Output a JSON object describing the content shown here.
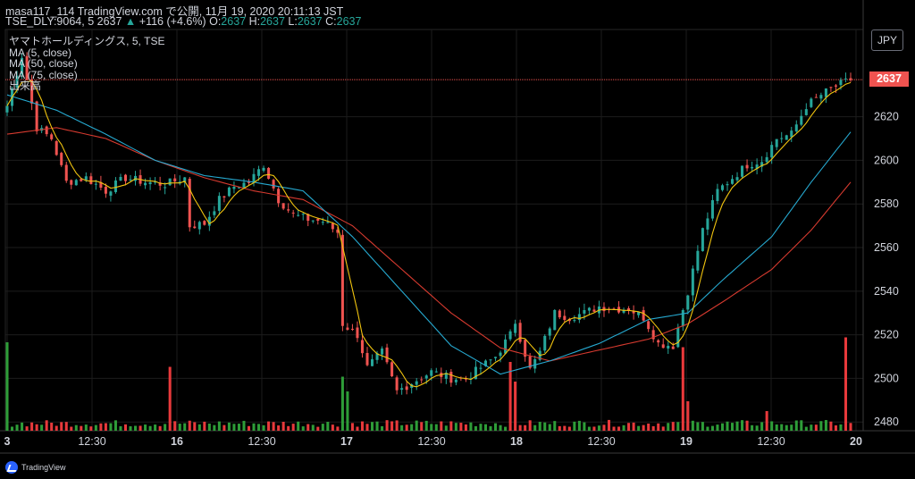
{
  "header": {
    "line1": "masa117_114 TradingView.com で公開, 11月 19, 2020 20:11:13 JST",
    "symbol": "TSE_DLY:9064, 5",
    "last": "2637",
    "change_arrow": "▲",
    "change": "+116 (+4.6%)",
    "o_label": "O:",
    "o_value": "2637",
    "h_label": "H:",
    "h_value": "2637",
    "l_label": "L:",
    "l_value": "2637",
    "c_label": "C:",
    "c_value": "2637"
  },
  "legend": {
    "title": "ヤマトホールディングス, 5, TSE",
    "ma5": "MA (5, close)",
    "ma50": "MA (50, close)",
    "ma75": "MA (75, close)",
    "volume": "出来高"
  },
  "currency": "JPY",
  "price_tag": "2637",
  "brand": "TradingView",
  "colors": {
    "up": "#26a69a",
    "down": "#ef5350",
    "volume_up": "#2e9d38",
    "volume_down": "#e8393b",
    "ma5": "#f1c40f",
    "ma50": "#26a9d0",
    "ma75": "#d63a2f",
    "background": "#000000",
    "grid": "#1c1c1c"
  },
  "chart_data": {
    "type": "candlestick",
    "interval": "5 min",
    "y_ticks": [
      2480,
      2500,
      2520,
      2540,
      2560,
      2580,
      2600,
      2620
    ],
    "ylim": [
      2476,
      2660
    ],
    "x_labels": [
      {
        "text": "3",
        "bold": true
      },
      {
        "text": "12:30",
        "bold": false
      },
      {
        "text": "16",
        "bold": true
      },
      {
        "text": "12:30",
        "bold": false
      },
      {
        "text": "17",
        "bold": true
      },
      {
        "text": "12:30",
        "bold": false
      },
      {
        "text": "18",
        "bold": true
      },
      {
        "text": "12:30",
        "bold": false
      },
      {
        "text": "19",
        "bold": true
      },
      {
        "text": "12:30",
        "bold": false
      },
      {
        "text": "20",
        "bold": true
      }
    ],
    "price_path": [
      [
        0,
        2625
      ],
      [
        3,
        2648
      ],
      [
        6,
        2615
      ],
      [
        9,
        2610
      ],
      [
        12,
        2590
      ],
      [
        16,
        2592
      ],
      [
        20,
        2586
      ],
      [
        24,
        2592
      ],
      [
        28,
        2590
      ],
      [
        32,
        2589
      ],
      [
        36,
        2592
      ],
      [
        37,
        2570
      ],
      [
        40,
        2571
      ],
      [
        43,
        2582
      ],
      [
        46,
        2588
      ],
      [
        49,
        2590
      ],
      [
        52,
        2598
      ],
      [
        55,
        2582
      ],
      [
        58,
        2575
      ],
      [
        61,
        2573
      ],
      [
        64,
        2572
      ],
      [
        67,
        2567
      ],
      [
        68,
        2525
      ],
      [
        71,
        2520
      ],
      [
        73,
        2505
      ],
      [
        76,
        2512
      ],
      [
        79,
        2494
      ],
      [
        82,
        2498
      ],
      [
        86,
        2503
      ],
      [
        90,
        2500
      ],
      [
        93,
        2500
      ],
      [
        96,
        2505
      ],
      [
        99,
        2510
      ],
      [
        102,
        2520
      ],
      [
        103,
        2526
      ],
      [
        106,
        2504
      ],
      [
        108,
        2512
      ],
      [
        111,
        2530
      ],
      [
        114,
        2528
      ],
      [
        117,
        2530
      ],
      [
        120,
        2533
      ],
      [
        123,
        2532
      ],
      [
        126,
        2532
      ],
      [
        129,
        2528
      ],
      [
        132,
        2516
      ],
      [
        135,
        2515
      ],
      [
        138,
        2540
      ],
      [
        141,
        2568
      ],
      [
        144,
        2586
      ],
      [
        147,
        2592
      ],
      [
        150,
        2598
      ],
      [
        153,
        2600
      ],
      [
        156,
        2610
      ],
      [
        159,
        2612
      ],
      [
        162,
        2625
      ],
      [
        165,
        2630
      ],
      [
        168,
        2634
      ],
      [
        171,
        2637
      ]
    ],
    "ma50_path": [
      [
        0,
        2630
      ],
      [
        10,
        2623
      ],
      [
        20,
        2612
      ],
      [
        30,
        2600
      ],
      [
        40,
        2593
      ],
      [
        50,
        2590
      ],
      [
        60,
        2586
      ],
      [
        70,
        2565
      ],
      [
        80,
        2540
      ],
      [
        90,
        2515
      ],
      [
        100,
        2502
      ],
      [
        110,
        2508
      ],
      [
        120,
        2516
      ],
      [
        130,
        2527
      ],
      [
        138,
        2530
      ],
      [
        145,
        2545
      ],
      [
        155,
        2565
      ],
      [
        163,
        2590
      ],
      [
        171,
        2613
      ]
    ],
    "ma75_path": [
      [
        0,
        2612
      ],
      [
        10,
        2615
      ],
      [
        20,
        2610
      ],
      [
        30,
        2600
      ],
      [
        40,
        2592
      ],
      [
        50,
        2586
      ],
      [
        60,
        2582
      ],
      [
        70,
        2570
      ],
      [
        80,
        2550
      ],
      [
        90,
        2530
      ],
      [
        100,
        2514
      ],
      [
        110,
        2508
      ],
      [
        120,
        2513
      ],
      [
        130,
        2518
      ],
      [
        138,
        2525
      ],
      [
        145,
        2535
      ],
      [
        155,
        2550
      ],
      [
        163,
        2568
      ],
      [
        171,
        2590
      ]
    ],
    "volume_spikes": [
      {
        "i": 0,
        "v": 0.9,
        "up": true
      },
      {
        "i": 33,
        "v": 0.65,
        "up": false
      },
      {
        "i": 68,
        "v": 0.55,
        "up": true
      },
      {
        "i": 69,
        "v": 0.4,
        "up": true
      },
      {
        "i": 102,
        "v": 0.7,
        "up": false
      },
      {
        "i": 103,
        "v": 0.5,
        "up": false
      },
      {
        "i": 137,
        "v": 0.85,
        "up": false
      },
      {
        "i": 138,
        "v": 0.3,
        "up": false
      },
      {
        "i": 154,
        "v": 0.2,
        "up": false
      },
      {
        "i": 170,
        "v": 0.95,
        "up": false
      }
    ]
  }
}
